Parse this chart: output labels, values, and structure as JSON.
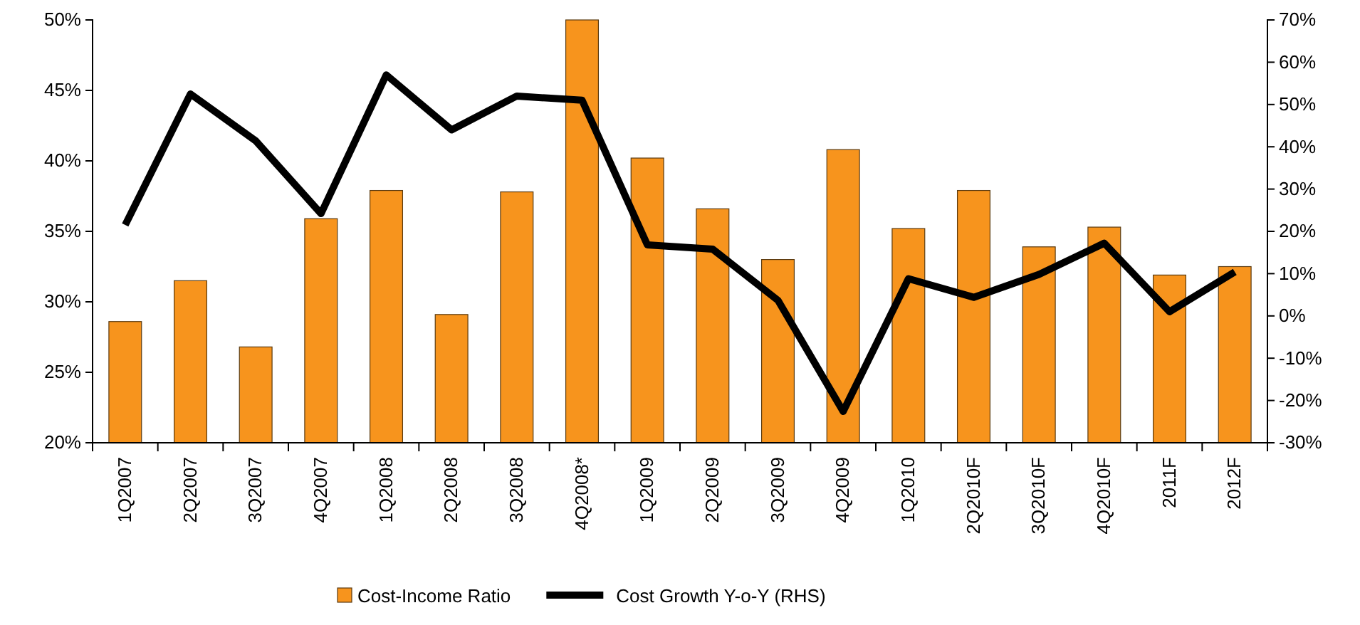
{
  "chart_data": {
    "type": "bar",
    "categories": [
      "1Q2007",
      "2Q2007",
      "3Q2007",
      "4Q2007",
      "1Q2008",
      "2Q2008",
      "3Q2008",
      "4Q2008*",
      "1Q2009",
      "2Q2009",
      "3Q2009",
      "4Q2009",
      "1Q2010",
      "2Q2010F",
      "3Q2010F",
      "4Q2010F",
      "2011F",
      "2012F"
    ],
    "series": [
      {
        "name": "Cost-Income Ratio",
        "color": "#f7941d",
        "values": [
          28.6,
          31.5,
          26.8,
          35.9,
          37.9,
          29.1,
          37.8,
          50,
          40.2,
          36.6,
          33,
          40.8,
          35.2,
          37.9,
          33.9,
          35.3,
          31.9,
          32.5
        ]
      },
      {
        "name": "Cost Growth Y-o-Y (RHS)",
        "type": "line",
        "axis": "y2",
        "color": "#000000",
        "values": [
          21.5,
          52.5,
          41.4,
          24.2,
          57,
          44,
          52,
          51,
          16.8,
          15.8,
          3.7,
          -22.6,
          8.8,
          4.4,
          9.8,
          17.2,
          1,
          10.4
        ]
      }
    ],
    "ylim": [
      20,
      50
    ],
    "yticks": [
      {
        "value": 20,
        "label": "20%"
      },
      {
        "value": 25,
        "label": "25%"
      },
      {
        "value": 30,
        "label": "30%"
      },
      {
        "value": 35,
        "label": "35%"
      },
      {
        "value": 40,
        "label": "40%"
      },
      {
        "value": 45,
        "label": "45%"
      },
      {
        "value": 50,
        "label": "50%"
      }
    ],
    "y2lim": [
      -30,
      70
    ],
    "y2ticks": [
      {
        "value": -30,
        "label": "-30%"
      },
      {
        "value": -20,
        "label": "-20%"
      },
      {
        "value": -10,
        "label": "-10%"
      },
      {
        "value": 0,
        "label": "0%"
      },
      {
        "value": 10,
        "label": "10%"
      },
      {
        "value": 20,
        "label": "20%"
      },
      {
        "value": 30,
        "label": "30%"
      },
      {
        "value": 40,
        "label": "40%"
      },
      {
        "value": 50,
        "label": "50%"
      },
      {
        "value": 60,
        "label": "60%"
      },
      {
        "value": 70,
        "label": "70%"
      }
    ],
    "legend": "bottom",
    "marker": "none",
    "line_style": "solid"
  }
}
